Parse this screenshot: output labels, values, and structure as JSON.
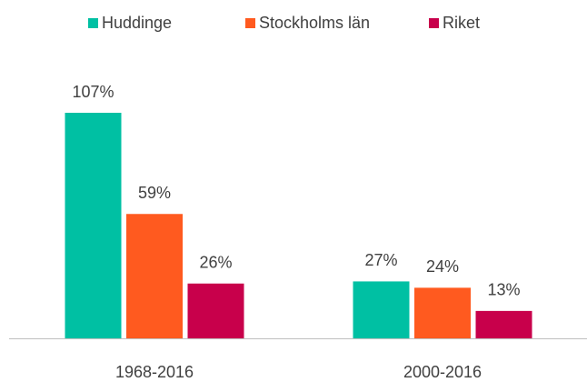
{
  "chart_data": {
    "type": "bar",
    "categories": [
      "1968-2016",
      "2000-2016"
    ],
    "series": [
      {
        "name": "Huddinge",
        "color": "#00c0a3",
        "values": [
          107,
          27
        ],
        "value_labels": [
          "107%",
          "27%"
        ]
      },
      {
        "name": "Stockholms län",
        "color": "#ff5a1f",
        "values": [
          59,
          24
        ],
        "value_labels": [
          "59%",
          "24%"
        ]
      },
      {
        "name": "Riket",
        "color": "#c8004b",
        "values": [
          26,
          13
        ],
        "value_labels": [
          "26%",
          "13%"
        ]
      }
    ],
    "legend": "top"
  }
}
